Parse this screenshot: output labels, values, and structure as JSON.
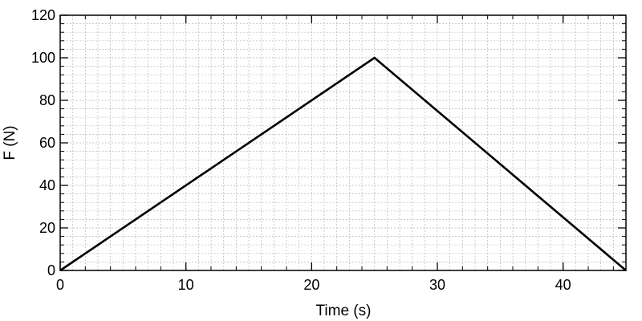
{
  "chart_data": {
    "type": "line",
    "title": "",
    "xlabel": "Time (s)",
    "ylabel": "F (N)",
    "xlim": [
      0,
      45
    ],
    "ylim": [
      0,
      120
    ],
    "x_ticks": [
      0,
      10,
      20,
      30,
      40
    ],
    "y_ticks": [
      0,
      20,
      40,
      60,
      80,
      100,
      120
    ],
    "x_minor_step": 1,
    "y_minor_step": 4,
    "grid": true,
    "legend": "none",
    "series": [
      {
        "color": "#000000",
        "x": [
          0,
          25,
          45
        ],
        "y": [
          0,
          100,
          0
        ]
      }
    ]
  }
}
